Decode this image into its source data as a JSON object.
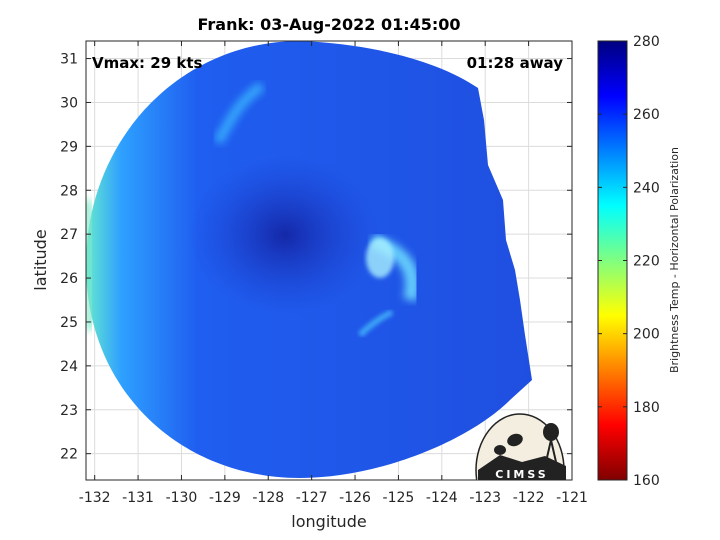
{
  "title": "Frank: 03-Aug-2022 01:45:00",
  "annotations": {
    "vmax": "Vmax: 29 kts",
    "away": "01:28 away"
  },
  "logo_text": "CIMSS",
  "colors": {
    "background_scene": "#1f4fe0",
    "eye_dark": "#1530b8",
    "bands_light": "#38c8ff",
    "edge_cyan": "#5de0d8"
  },
  "chart_data": {
    "type": "heatmap",
    "title": "Frank: 03-Aug-2022 01:45:00",
    "xlabel": "longitude",
    "ylabel": "latitude",
    "xlim": [
      -132.2,
      -121
    ],
    "ylim": [
      21.4,
      31.4
    ],
    "xticks": [
      -132,
      -131,
      -130,
      -129,
      -128,
      -127,
      -126,
      -125,
      -124,
      -123,
      -122,
      -121
    ],
    "yticks": [
      22,
      23,
      24,
      25,
      26,
      27,
      28,
      29,
      30,
      31
    ],
    "grid": true,
    "colorbar": {
      "label": "Brightness Temp - Horizontal Polarization",
      "range": [
        160,
        280
      ],
      "ticks": [
        160,
        180,
        200,
        220,
        240,
        260,
        280
      ],
      "colormap": "jet"
    }
  }
}
